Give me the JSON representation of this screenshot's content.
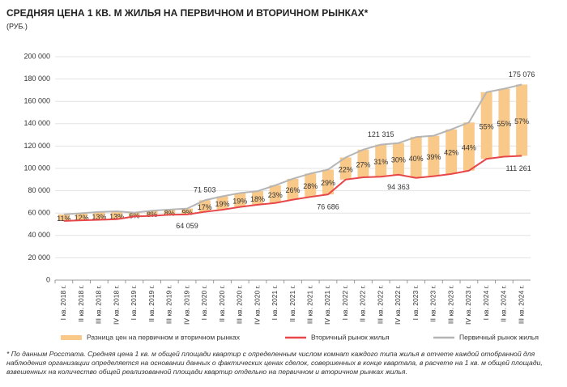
{
  "chart_data": {
    "type": "bar-range-line",
    "title": "СРЕДНЯЯ ЦЕНА 1 КВ. М ЖИЛЬЯ НА ПЕРВИЧНОМ И ВТОРИЧНОМ РЫНКАХ*",
    "subtitle": "(РУБ.)",
    "categories": [
      "I кв. 2018 г.",
      "II кв. 2018 г.",
      "III кв. 2018 г.",
      "IV кв. 2018 г.",
      "I кв. 2019 г.",
      "II кв. 2019 г.",
      "III кв. 2019 г.",
      "IV кв. 2019 г.",
      "I кв. 2020 г.",
      "II кв. 2020 г.",
      "III кв. 2020 г.",
      "IV кв. 2020 г.",
      "I кв. 2021 г.",
      "II кв. 2021 г.",
      "III кв. 2021 г.",
      "IV кв. 2021 г.",
      "I кв. 2022 г.",
      "II кв. 2022 г.",
      "III кв. 2022 г.",
      "IV кв. 2022 г.",
      "I кв. 2023 г.",
      "II кв. 2023 г.",
      "III кв. 2023 г.",
      "IV кв. 2023 г.",
      "I кв. 2024 г.",
      "II кв. 2024 г.",
      "III кв. 2024 г."
    ],
    "series": [
      {
        "name": "Разница цен на первичном и вторичном рынках",
        "color": "#f9c98a",
        "values": [
          11,
          12,
          13,
          13,
          6,
          8,
          8,
          9,
          17,
          19,
          19,
          18,
          23,
          26,
          28,
          29,
          22,
          27,
          31,
          30,
          40,
          39,
          42,
          44,
          55,
          55,
          57
        ],
        "value_labels": [
          "11%",
          "12%",
          "13%",
          "13%",
          "6%",
          "8%",
          "8%",
          "9%",
          "17%",
          "19%",
          "19%",
          "18%",
          "23%",
          "26%",
          "28%",
          "29%",
          "22%",
          "27%",
          "31%",
          "30%",
          "40%",
          "39%",
          "42%",
          "44%",
          "55%",
          "55%",
          "57%"
        ]
      },
      {
        "name": "Вторичный рынок жилья",
        "color": "#e8474a",
        "values": [
          53000,
          53500,
          54000,
          54500,
          57000,
          57500,
          58500,
          58770,
          61114,
          63000,
          65500,
          67500,
          69000,
          72000,
          74500,
          76686,
          90000,
          92000,
          92600,
          94363,
          91500,
          93000,
          95000,
          98000,
          108500,
          110500,
          111261
        ],
        "value_labels": [
          null,
          null,
          null,
          null,
          null,
          null,
          null,
          null,
          null,
          null,
          null,
          null,
          null,
          null,
          null,
          "76 686",
          null,
          null,
          null,
          "94 363",
          null,
          null,
          null,
          null,
          null,
          null,
          "111 261"
        ]
      },
      {
        "name": "Первичный рынок жилья",
        "color": "#b5b5b5",
        "values": [
          58830,
          59920,
          61020,
          61585,
          60420,
          62100,
          63180,
          64059,
          71503,
          74970,
          77945,
          79650,
          84870,
          90720,
          95360,
          98925,
          109800,
          116840,
          121315,
          122672,
          128100,
          129270,
          134900,
          141120,
          168175,
          171275,
          175076
        ],
        "value_labels": [
          null,
          null,
          null,
          null,
          null,
          null,
          null,
          "64 059",
          "71 503",
          null,
          null,
          null,
          null,
          null,
          null,
          null,
          null,
          null,
          "121 315",
          null,
          null,
          null,
          null,
          null,
          null,
          null,
          "175 076"
        ]
      }
    ],
    "ylim": [
      0,
      200000
    ],
    "yticks": [
      {
        "value": 0,
        "label": "0"
      },
      {
        "value": 20000,
        "label": "20 000"
      },
      {
        "value": 40000,
        "label": "40 000"
      },
      {
        "value": 60000,
        "label": "60 000"
      },
      {
        "value": 80000,
        "label": "80 000"
      },
      {
        "value": 100000,
        "label": "100 000"
      },
      {
        "value": 120000,
        "label": "120 000"
      },
      {
        "value": 140000,
        "label": "140 000"
      },
      {
        "value": 160000,
        "label": "160 000"
      },
      {
        "value": 180000,
        "label": "180 000"
      },
      {
        "value": 200000,
        "label": "200 000"
      }
    ],
    "grid": true,
    "note": "* По данным Росстата. Средняя цена 1 кв. м общей площади квартир с определенным числом комнат каждого типа жилья в отчете каждой отобранной для наблюдения организации определяется на основании данных о фактических ценах сделок, совершенных в конце квартала, в расчете на 1 кв. м общей площади, взвешенных на количество общей реализованной площади квартир отдельно на первичном и вторичном рынках жилья."
  }
}
